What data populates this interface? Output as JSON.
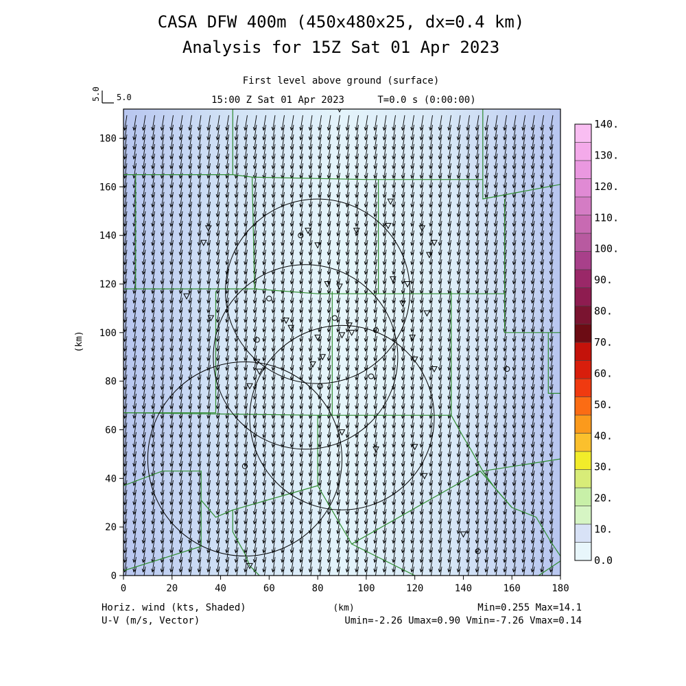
{
  "header": {
    "title_line1": "CASA DFW 400m (450x480x25, dx=0.4 km)",
    "title_line2": "Analysis for 15Z Sat 01 Apr 2023",
    "level": "First level above ground (surface)",
    "time": "15:00 Z Sat 01 Apr 2023",
    "tstep": "T=0.0 s (0:00:00)"
  },
  "ref_vector": {
    "label_top": "5.0",
    "label_right": "5.0"
  },
  "footer": {
    "left1": "Horiz. wind (kts, Shaded)",
    "left2": "U-V (m/s, Vector)",
    "center": "(km)",
    "right1": "Min=0.255 Max=14.1",
    "right2": "Umin=-2.26 Umax=0.90 Vmin=-7.26 Vmax=0.14"
  },
  "colors": {
    "field_low": "#e6f5fb",
    "field_mid": "#cfe0f5",
    "field_high": "#b8c6f0",
    "boundary": "#2e8b2e",
    "vectors": "#000000"
  },
  "chart_data": {
    "type": "heatmap",
    "xlabel": "",
    "ylabel": "(km)",
    "xlim": [
      0,
      180
    ],
    "ylim": [
      0,
      192
    ],
    "x_ticks": [
      "0",
      "20",
      "40",
      "60",
      "80",
      "100",
      "120",
      "140",
      "160",
      "180"
    ],
    "y_ticks": [
      "0",
      "20",
      "40",
      "60",
      "80",
      "100",
      "120",
      "140",
      "160",
      "180"
    ],
    "wind_field": {
      "u_mean": -0.7,
      "v_mean": -4.5,
      "min_kts": 0.255,
      "max_kts": 14.1
    },
    "colorbar": {
      "labels": [
        "0.0",
        "10.",
        "20.",
        "30.",
        "40.",
        "50.",
        "60.",
        "70.",
        "80.",
        "90.",
        "100.",
        "110.",
        "120.",
        "130.",
        "140."
      ],
      "colors": [
        "#e8f6fb",
        "#d8e2f6",
        "#d6f5c4",
        "#c8f0a8",
        "#d8ec78",
        "#f2ec2a",
        "#fbc02d",
        "#fb9a1c",
        "#fb6c14",
        "#f03a10",
        "#d81e0c",
        "#c4120a",
        "#6c0c14",
        "#7a1430",
        "#8e1c50",
        "#9a2868",
        "#a8408a",
        "#b85aa0",
        "#c86ab2",
        "#d47cc4",
        "#e08ad4",
        "#ea98e0",
        "#f4aaea",
        "#f9bef2"
      ]
    },
    "radar_circles": [
      {
        "cx": 80,
        "cy": 117,
        "r": 38
      },
      {
        "cx": 75,
        "cy": 90,
        "r": 38
      },
      {
        "cx": 90,
        "cy": 65,
        "r": 38
      },
      {
        "cx": 50,
        "cy": 48,
        "r": 40
      }
    ],
    "stations": [
      {
        "x": 35,
        "y": 143,
        "s": "v"
      },
      {
        "x": 33,
        "y": 137,
        "s": "v"
      },
      {
        "x": 26,
        "y": 115,
        "s": "v"
      },
      {
        "x": 36,
        "y": 106,
        "s": "v"
      },
      {
        "x": 73,
        "y": 140,
        "s": "o"
      },
      {
        "x": 76,
        "y": 142,
        "s": "v"
      },
      {
        "x": 80,
        "y": 136,
        "s": "v"
      },
      {
        "x": 96,
        "y": 142,
        "s": "v"
      },
      {
        "x": 110,
        "y": 154,
        "s": "v"
      },
      {
        "x": 109,
        "y": 144,
        "s": "v"
      },
      {
        "x": 123,
        "y": 143,
        "s": "v"
      },
      {
        "x": 128,
        "y": 137,
        "s": "v"
      },
      {
        "x": 126,
        "y": 132,
        "s": "v"
      },
      {
        "x": 111,
        "y": 122,
        "s": "v"
      },
      {
        "x": 117,
        "y": 120,
        "s": "v"
      },
      {
        "x": 84,
        "y": 120,
        "s": "v"
      },
      {
        "x": 89,
        "y": 119,
        "s": "v"
      },
      {
        "x": 60,
        "y": 114,
        "s": "o"
      },
      {
        "x": 115,
        "y": 112,
        "s": "v"
      },
      {
        "x": 67,
        "y": 105,
        "s": "v"
      },
      {
        "x": 69,
        "y": 102,
        "s": "v"
      },
      {
        "x": 87,
        "y": 106,
        "s": "o"
      },
      {
        "x": 93,
        "y": 103,
        "s": "v"
      },
      {
        "x": 125,
        "y": 108,
        "s": "v"
      },
      {
        "x": 55,
        "y": 97,
        "s": "o"
      },
      {
        "x": 80,
        "y": 98,
        "s": "v"
      },
      {
        "x": 90,
        "y": 99,
        "s": "v"
      },
      {
        "x": 94,
        "y": 100,
        "s": "v"
      },
      {
        "x": 104,
        "y": 101,
        "s": "o"
      },
      {
        "x": 119,
        "y": 98,
        "s": "v"
      },
      {
        "x": 55,
        "y": 88,
        "s": "v"
      },
      {
        "x": 56,
        "y": 84,
        "s": "v"
      },
      {
        "x": 78,
        "y": 87,
        "s": "v"
      },
      {
        "x": 82,
        "y": 90,
        "s": "v"
      },
      {
        "x": 120,
        "y": 89,
        "s": "v"
      },
      {
        "x": 128,
        "y": 85,
        "s": "v"
      },
      {
        "x": 102,
        "y": 82,
        "s": "o"
      },
      {
        "x": 81,
        "y": 78,
        "s": "o"
      },
      {
        "x": 52,
        "y": 78,
        "s": "v"
      },
      {
        "x": 158,
        "y": 85,
        "s": "o"
      },
      {
        "x": 90,
        "y": 59,
        "s": "v"
      },
      {
        "x": 104,
        "y": 52,
        "s": "v"
      },
      {
        "x": 120,
        "y": 53,
        "s": "v"
      },
      {
        "x": 50,
        "y": 45,
        "s": "o"
      },
      {
        "x": 124,
        "y": 41,
        "s": "v"
      },
      {
        "x": 89,
        "y": 192,
        "s": "v"
      },
      {
        "x": 140,
        "y": 17,
        "s": "v"
      },
      {
        "x": 146,
        "y": 10,
        "s": "o"
      },
      {
        "x": 52,
        "y": 4,
        "s": "v"
      }
    ],
    "boundaries": [
      [
        [
          5,
          165
        ],
        [
          5,
          118
        ]
      ],
      [
        [
          0,
          165
        ],
        [
          45,
          165
        ],
        [
          53,
          164
        ],
        [
          54,
          118
        ],
        [
          0,
          118
        ]
      ],
      [
        [
          53,
          164
        ],
        [
          100,
          163
        ],
        [
          148,
          163
        ]
      ],
      [
        [
          45,
          192
        ],
        [
          45,
          165
        ]
      ],
      [
        [
          148,
          192
        ],
        [
          148,
          155
        ],
        [
          180,
          161
        ]
      ],
      [
        [
          54,
          118
        ],
        [
          80,
          116
        ],
        [
          157,
          116
        ],
        [
          157,
          100
        ],
        [
          180,
          100
        ]
      ],
      [
        [
          157,
          116
        ],
        [
          157,
          155
        ]
      ],
      [
        [
          38,
          117
        ],
        [
          38,
          67
        ],
        [
          0,
          67
        ]
      ],
      [
        [
          0,
          67
        ],
        [
          80,
          66
        ],
        [
          135,
          66
        ],
        [
          135,
          117
        ]
      ],
      [
        [
          86,
          117
        ],
        [
          86,
          66
        ]
      ],
      [
        [
          105,
          163
        ],
        [
          105,
          116
        ]
      ],
      [
        [
          0,
          37
        ],
        [
          16,
          43
        ],
        [
          32,
          43
        ],
        [
          32,
          31
        ],
        [
          38,
          24
        ],
        [
          45,
          27
        ],
        [
          45,
          18
        ],
        [
          50,
          9
        ],
        [
          52,
          4
        ],
        [
          56,
          0
        ]
      ],
      [
        [
          32,
          31
        ],
        [
          32,
          12
        ],
        [
          0,
          2
        ]
      ],
      [
        [
          45,
          27
        ],
        [
          80,
          37
        ],
        [
          80,
          66
        ]
      ],
      [
        [
          80,
          37
        ],
        [
          94,
          13
        ],
        [
          147,
          43
        ],
        [
          160,
          28
        ],
        [
          170,
          24
        ],
        [
          176,
          14
        ],
        [
          180,
          8
        ]
      ],
      [
        [
          94,
          13
        ],
        [
          120,
          0
        ]
      ],
      [
        [
          135,
          66
        ],
        [
          140,
          57
        ],
        [
          143,
          52
        ],
        [
          148,
          43
        ],
        [
          180,
          48
        ]
      ],
      [
        [
          148,
          43
        ],
        [
          153,
          36
        ],
        [
          160,
          28
        ]
      ],
      [
        [
          171,
          0
        ],
        [
          180,
          6
        ]
      ],
      [
        [
          175,
          100
        ],
        [
          175,
          75
        ],
        [
          180,
          75
        ]
      ]
    ]
  }
}
